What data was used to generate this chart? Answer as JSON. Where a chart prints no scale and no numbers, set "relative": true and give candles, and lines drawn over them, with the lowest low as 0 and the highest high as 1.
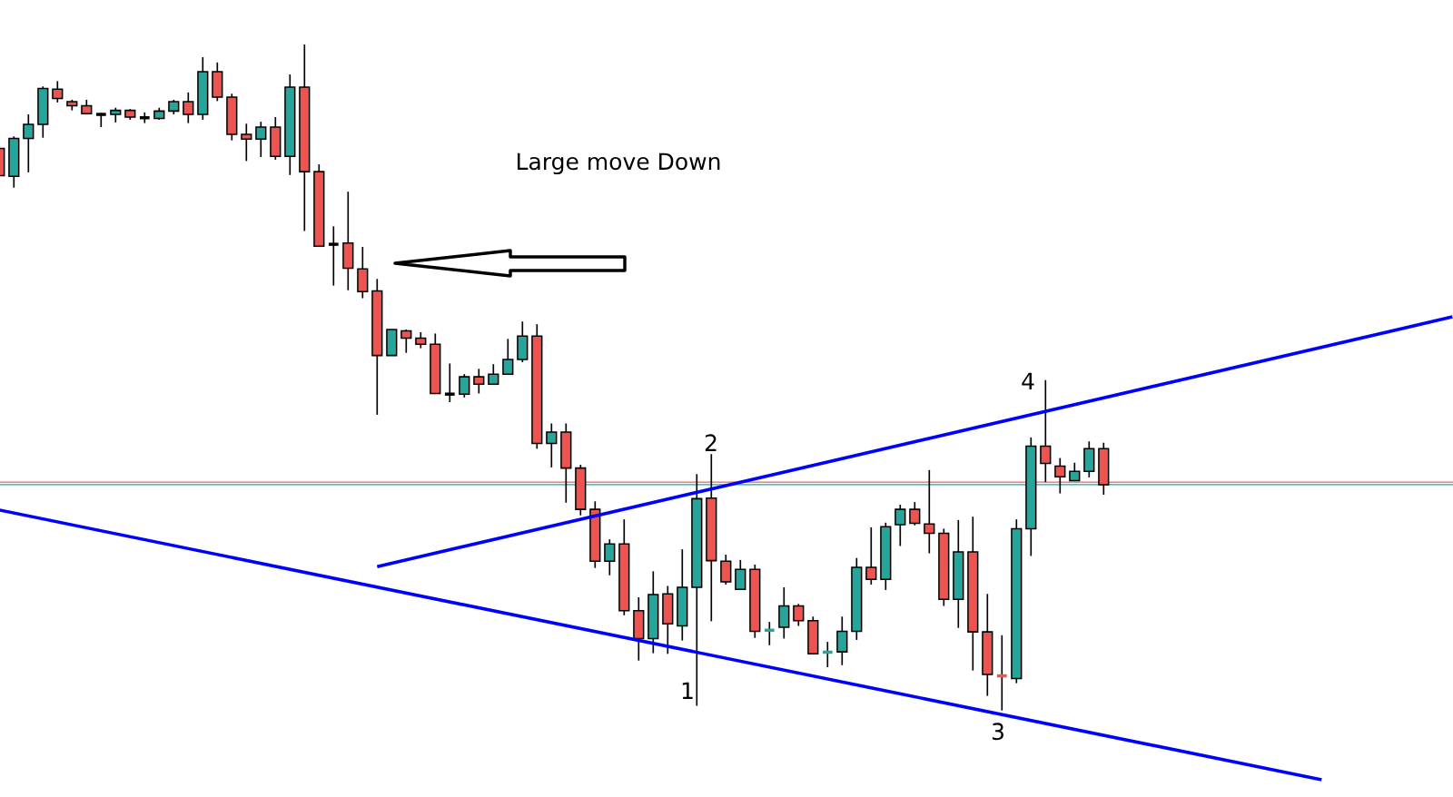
{
  "chart_data": {
    "type": "candlestick",
    "relative": true,
    "categories": [
      null,
      null,
      null,
      null,
      null,
      null,
      null,
      null,
      null,
      null,
      null,
      null,
      null,
      null,
      null,
      null,
      null,
      null,
      null,
      null,
      null,
      null,
      null,
      null,
      null,
      null,
      null,
      null,
      null,
      null,
      null,
      null,
      null,
      null,
      null,
      null,
      null,
      null,
      null,
      null,
      null,
      null,
      null,
      null,
      null,
      null,
      null,
      null,
      null,
      null,
      null,
      null,
      null,
      null,
      null,
      null,
      null,
      null,
      null,
      null,
      null,
      null,
      null,
      null,
      null,
      null,
      null,
      null,
      null,
      null,
      null,
      null,
      null,
      null,
      null,
      null,
      null,
      null,
      null,
      null,
      null,
      null,
      null,
      null,
      null,
      null,
      null,
      null,
      null,
      null,
      null,
      null,
      null,
      null,
      null,
      null,
      null,
      null,
      null,
      null,
      null
    ],
    "ohlc": [
      [
        0.844,
        0.844,
        0.803,
        0.803
      ],
      [
        0.802,
        0.862,
        0.785,
        0.859
      ],
      [
        0.859,
        0.895,
        0.808,
        0.88
      ],
      [
        0.88,
        0.937,
        0.86,
        0.934
      ],
      [
        0.933,
        0.945,
        0.913,
        0.919
      ],
      [
        0.914,
        0.917,
        0.901,
        0.908
      ],
      [
        0.908,
        0.917,
        0.896,
        0.896
      ],
      [
        0.895,
        0.897,
        0.876,
        0.895
      ],
      [
        0.895,
        0.905,
        0.883,
        0.901
      ],
      [
        0.901,
        0.903,
        0.887,
        0.891
      ],
      [
        0.89,
        0.898,
        0.882,
        0.89
      ],
      [
        0.889,
        0.905,
        0.887,
        0.9
      ],
      [
        0.9,
        0.917,
        0.895,
        0.914
      ],
      [
        0.914,
        0.928,
        0.882,
        0.895
      ],
      [
        0.895,
        0.981,
        0.887,
        0.959
      ],
      [
        0.959,
        0.973,
        0.915,
        0.921
      ],
      [
        0.921,
        0.926,
        0.856,
        0.865
      ],
      [
        0.865,
        0.881,
        0.825,
        0.858
      ],
      [
        0.858,
        0.884,
        0.831,
        0.876
      ],
      [
        0.876,
        0.891,
        0.827,
        0.832
      ],
      [
        0.832,
        0.955,
        0.804,
        0.936
      ],
      [
        0.936,
        1,
        0.72,
        0.809
      ],
      [
        0.809,
        0.82,
        0.697,
        0.697
      ],
      [
        0.7,
        0.727,
        0.638,
        0.7
      ],
      [
        0.702,
        0.779,
        0.631,
        0.664
      ],
      [
        0.663,
        0.696,
        0.619,
        0.629
      ],
      [
        0.63,
        0.648,
        0.444,
        0.533
      ],
      [
        0.533,
        0.572,
        0.533,
        0.572
      ],
      [
        0.57,
        0.572,
        0.537,
        0.559
      ],
      [
        0.559,
        0.568,
        0.544,
        0.55
      ],
      [
        0.55,
        0.566,
        0.476,
        0.476
      ],
      [
        0.475,
        0.521,
        0.463,
        0.475
      ],
      [
        0.475,
        0.505,
        0.47,
        0.501
      ],
      [
        0.501,
        0.513,
        0.476,
        0.49
      ],
      [
        0.49,
        0.52,
        0.49,
        0.505
      ],
      [
        0.505,
        0.558,
        0.505,
        0.527
      ],
      [
        0.527,
        0.584,
        0.523,
        0.562
      ],
      [
        0.562,
        0.58,
        0.393,
        0.401
      ],
      [
        0.401,
        0.431,
        0.365,
        0.418
      ],
      [
        0.418,
        0.431,
        0.312,
        0.364
      ],
      [
        0.364,
        0.369,
        0.293,
        0.302
      ],
      [
        0.302,
        0.314,
        0.214,
        0.224
      ],
      [
        0.224,
        0.257,
        0.203,
        0.25
      ],
      [
        0.25,
        0.287,
        0.143,
        0.15
      ],
      [
        0.15,
        0.17,
        0.075,
        0.108
      ],
      [
        0.108,
        0.209,
        0.086,
        0.174
      ],
      [
        0.175,
        0.187,
        0.085,
        0.13
      ],
      [
        0.127,
        0.242,
        0.105,
        0.185
      ],
      [
        0.185,
        0.355,
        0.007,
        0.318
      ],
      [
        0.319,
        0.385,
        0.134,
        0.225
      ],
      [
        0.224,
        0.234,
        0.189,
        0.193
      ],
      [
        0.182,
        0.226,
        0.182,
        0.212
      ],
      [
        0.212,
        0.219,
        0.109,
        0.119
      ],
      [
        0.119,
        0.133,
        0.098,
        0.122
      ],
      [
        0.125,
        0.185,
        0.108,
        0.157
      ],
      [
        0.157,
        0.16,
        0.127,
        0.135
      ],
      [
        0.135,
        0.141,
        0.084,
        0.085
      ],
      [
        0.086,
        0.103,
        0.065,
        0.089
      ],
      [
        0.088,
        0.141,
        0.068,
        0.119
      ],
      [
        0.119,
        0.229,
        0.106,
        0.215
      ],
      [
        0.215,
        0.275,
        0.189,
        0.197
      ],
      [
        0.197,
        0.282,
        0.181,
        0.276
      ],
      [
        0.279,
        0.309,
        0.247,
        0.302
      ],
      [
        0.302,
        0.313,
        0.278,
        0.281
      ],
      [
        0.28,
        0.361,
        0.236,
        0.266
      ],
      [
        0.266,
        0.273,
        0.157,
        0.167
      ],
      [
        0.167,
        0.286,
        0.124,
        0.238
      ],
      [
        0.238,
        0.291,
        0.06,
        0.118
      ],
      [
        0.118,
        0.175,
        0.022,
        0.054
      ],
      [
        0.054,
        0.113,
        0,
        0.05
      ],
      [
        0.048,
        0.287,
        0.041,
        0.273
      ],
      [
        0.273,
        0.41,
        0.232,
        0.397
      ],
      [
        0.397,
        0.496,
        0.343,
        0.371
      ],
      [
        0.367,
        0.379,
        0.326,
        0.351
      ],
      [
        0.345,
        0.372,
        0.345,
        0.359
      ],
      [
        0.359,
        0.404,
        0.35,
        0.393
      ],
      [
        0.393,
        0.402,
        0.324,
        0.339
      ],
      null,
      null,
      null,
      null,
      null,
      null,
      null,
      null,
      null,
      null,
      null,
      null,
      null,
      null,
      null,
      null,
      null,
      null,
      null,
      null,
      null,
      null,
      null,
      null
    ],
    "colors": [
      "#ef5350",
      "#26a69a",
      "#26a69a",
      "#26a69a",
      "#ef5350",
      "#ef5350",
      "#ef5350",
      "#000000",
      "#26a69a",
      "#ef5350",
      "#000000",
      "#26a69a",
      "#26a69a",
      "#ef5350",
      "#26a69a",
      "#ef5350",
      "#ef5350",
      "#ef5350",
      "#26a69a",
      "#ef5350",
      "#26a69a",
      "#ef5350",
      "#ef5350",
      "#000000",
      "#ef5350",
      "#ef5350",
      "#ef5350",
      "#26a69a",
      "#ef5350",
      "#ef5350",
      "#ef5350",
      "#000000",
      "#26a69a",
      "#ef5350",
      "#26a69a",
      "#26a69a",
      "#26a69a",
      "#ef5350",
      "#26a69a",
      "#ef5350",
      "#ef5350",
      "#ef5350",
      "#26a69a",
      "#ef5350",
      "#ef5350",
      "#26a69a",
      "#ef5350",
      "#26a69a",
      "#26a69a",
      "#ef5350",
      "#ef5350",
      "#26a69a",
      "#ef5350",
      "#26a69a",
      "#26a69a",
      "#ef5350",
      "#ef5350",
      "#26a69a",
      "#26a69a",
      "#26a69a",
      "#ef5350",
      "#26a69a",
      "#26a69a",
      "#ef5350",
      "#ef5350",
      "#ef5350",
      "#26a69a",
      "#ef5350",
      "#ef5350",
      "#ef5350",
      "#26a69a",
      "#26a69a",
      "#ef5350",
      "#ef5350",
      "#26a69a",
      "#26a69a",
      "#ef5350",
      null,
      null,
      null,
      null,
      null,
      null,
      null,
      null,
      null,
      null,
      null,
      null,
      null,
      null,
      null,
      null,
      null,
      null,
      null,
      null,
      null,
      null,
      null,
      null
    ],
    "series": [
      {
        "type": "line",
        "color": "#0000ff",
        "values": [
          null,
          null,
          null,
          null,
          null,
          null,
          null,
          null,
          null,
          null,
          null,
          null,
          null,
          null,
          null,
          null,
          null,
          null,
          null,
          null,
          null,
          null,
          null,
          null,
          null,
          null,
          0.216,
          null,
          null,
          null,
          null,
          null,
          null,
          null,
          null,
          null,
          null,
          null,
          null,
          null,
          null,
          null,
          null,
          null,
          null,
          null,
          null,
          null,
          null,
          null,
          null,
          null,
          null,
          null,
          null,
          null,
          null,
          null,
          null,
          null,
          null,
          null,
          null,
          null,
          null,
          null,
          null,
          null,
          null,
          null,
          null,
          null,
          null,
          null,
          null,
          null,
          null,
          null,
          null,
          null,
          null,
          null,
          null,
          null,
          null,
          null,
          null,
          null,
          null,
          null,
          null,
          null,
          null,
          null,
          null,
          null,
          null,
          null,
          null,
          null,
          0.591
        ]
      },
      {
        "type": "line",
        "color": "#0000ff",
        "values": [
          0.301,
          null,
          null,
          null,
          null,
          null,
          null,
          null,
          null,
          null,
          null,
          null,
          null,
          null,
          null,
          null,
          null,
          null,
          null,
          null,
          null,
          null,
          null,
          null,
          null,
          null,
          null,
          null,
          null,
          null,
          null,
          null,
          null,
          null,
          null,
          null,
          null,
          null,
          null,
          null,
          null,
          null,
          null,
          null,
          null,
          null,
          null,
          null,
          null,
          null,
          null,
          null,
          null,
          null,
          null,
          null,
          null,
          null,
          null,
          null,
          null,
          null,
          null,
          null,
          null,
          null,
          null,
          null,
          null,
          null,
          null,
          null,
          null,
          null,
          null,
          null,
          null,
          null,
          null,
          null,
          null,
          null,
          null,
          null,
          null,
          null,
          null,
          null,
          null,
          null,
          null,
          -0.104,
          null,
          null,
          null,
          null,
          null,
          null,
          null,
          null,
          null
        ]
      }
    ],
    "ref_lines": [
      {
        "axis": "y",
        "value": 0.343,
        "color": "#e06666",
        "line_style": "solid"
      },
      {
        "axis": "y",
        "value": 0.339,
        "color": "#26a69a",
        "line_style": "solid"
      }
    ],
    "annotations": [
      "Large move Down",
      "1",
      "2",
      "3",
      "4"
    ]
  }
}
